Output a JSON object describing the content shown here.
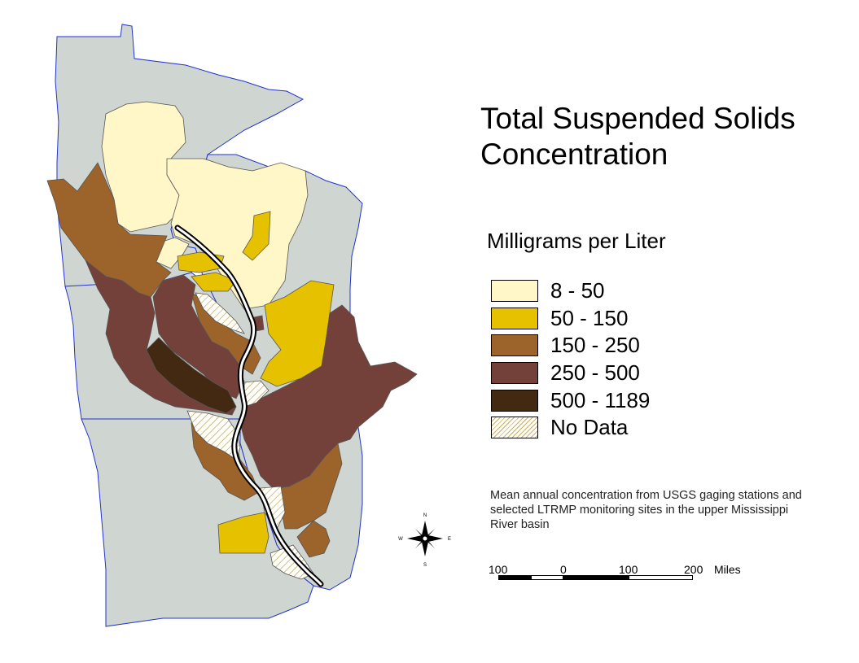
{
  "title": [
    "Total Suspended Solids",
    "Concentration"
  ],
  "units": "Milligrams per Liter",
  "legend": [
    {
      "label": "8 - 50",
      "color": "#fff7c7"
    },
    {
      "label": "50 - 150",
      "color": "#e5c100"
    },
    {
      "label": "150 - 250",
      "color": "#9c632b"
    },
    {
      "label": "250 - 500",
      "color": "#74403a"
    },
    {
      "label": "500 - 1189",
      "color": "#432812"
    },
    {
      "label": "No Data",
      "color": "hatch"
    }
  ],
  "note": "Mean annual concentration from USGS gaging stations and selected LTRMP monitoring sites in the upper Mississippi River basin",
  "scale": {
    "labels": [
      "100",
      "0",
      "100",
      "200"
    ],
    "unit": "Miles"
  },
  "compass": {
    "n": "N",
    "s": "S",
    "e": "E",
    "w": "W"
  },
  "colors": {
    "state_fill": "#cfd6d2",
    "state_border": "#2233cc",
    "river": "#ffffff"
  }
}
